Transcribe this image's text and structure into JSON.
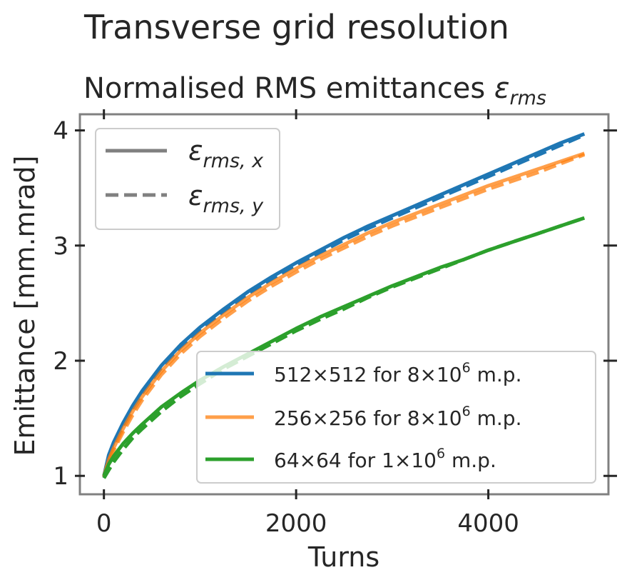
{
  "chart_data": {
    "type": "line",
    "suptitle": "Transverse grid resolution",
    "title": "Normalised RMS emittances ε_rms",
    "title_text": "Normalised RMS emittances ",
    "title_symbol": "ε",
    "title_sub": "rms",
    "xlabel": "Turns",
    "ylabel": "Emittance [mm.mrad]",
    "xlim": [
      -250,
      5250
    ],
    "ylim": [
      0.84,
      4.14
    ],
    "xticks": [
      0,
      2000,
      4000
    ],
    "yticks": [
      1,
      2,
      3,
      4
    ],
    "grid": false,
    "linestyle_legend": {
      "placement": "upper-left",
      "entries": [
        {
          "symbol": "ε",
          "sub": "rms, x",
          "style": "solid"
        },
        {
          "symbol": "ε",
          "sub": "rms, y",
          "style": "dashed"
        }
      ]
    },
    "series_legend": {
      "placement": "lower-right",
      "entries": [
        {
          "a": "512",
          "b": "512",
          "c": "8",
          "d": "10",
          "e": "6",
          "tail": " m.p."
        },
        {
          "a": "256",
          "b": "256",
          "c": "8",
          "d": "10",
          "e": "6",
          "tail": " m.p."
        },
        {
          "a": "64",
          "b": "64",
          "c": "1",
          "d": "10",
          "e": "6",
          "tail": " m.p."
        }
      ]
    },
    "x": [
      0,
      50,
      100,
      200,
      300,
      400,
      600,
      800,
      1000,
      1250,
      1500,
      1750,
      2000,
      2250,
      2500,
      2750,
      3000,
      3250,
      3500,
      3750,
      4000,
      4250,
      4500,
      4750,
      5000
    ],
    "series": [
      {
        "name": "512 × 512 for 8 × 10⁶ m.p.",
        "color": "#1f77b4",
        "x_values": [
          1.0,
          1.18,
          1.29,
          1.46,
          1.61,
          1.74,
          1.96,
          2.14,
          2.29,
          2.45,
          2.6,
          2.73,
          2.85,
          2.96,
          3.07,
          3.17,
          3.26,
          3.35,
          3.44,
          3.53,
          3.62,
          3.71,
          3.8,
          3.89,
          3.97
        ],
        "y_values": [
          0.99,
          1.16,
          1.27,
          1.44,
          1.59,
          1.72,
          1.94,
          2.12,
          2.27,
          2.43,
          2.58,
          2.71,
          2.83,
          2.94,
          3.05,
          3.15,
          3.24,
          3.33,
          3.42,
          3.51,
          3.6,
          3.69,
          3.78,
          3.87,
          3.96
        ]
      },
      {
        "name": "256 × 256 for 8 × 10⁶ m.p.",
        "color": "#ff7f0e",
        "x_values": [
          1.0,
          1.14,
          1.24,
          1.41,
          1.56,
          1.69,
          1.91,
          2.09,
          2.24,
          2.4,
          2.55,
          2.68,
          2.8,
          2.91,
          3.01,
          3.11,
          3.2,
          3.28,
          3.36,
          3.44,
          3.52,
          3.59,
          3.66,
          3.73,
          3.8
        ],
        "y_values": [
          0.99,
          1.12,
          1.22,
          1.38,
          1.53,
          1.66,
          1.88,
          2.06,
          2.21,
          2.37,
          2.52,
          2.65,
          2.77,
          2.88,
          2.98,
          3.08,
          3.17,
          3.25,
          3.33,
          3.41,
          3.49,
          3.56,
          3.63,
          3.71,
          3.79
        ]
      },
      {
        "name": "64 × 64 for 1 × 10⁶ m.p.",
        "color": "#2ca02c",
        "x_values": [
          1.0,
          1.1,
          1.17,
          1.28,
          1.37,
          1.45,
          1.6,
          1.72,
          1.83,
          1.95,
          2.06,
          2.17,
          2.28,
          2.38,
          2.47,
          2.56,
          2.65,
          2.73,
          2.81,
          2.88,
          2.96,
          3.03,
          3.1,
          3.17,
          3.24
        ],
        "y_values": [
          0.98,
          1.05,
          1.12,
          1.23,
          1.33,
          1.41,
          1.56,
          1.69,
          1.8,
          1.93,
          2.04,
          2.15,
          2.26,
          2.36,
          2.45,
          2.55,
          2.64,
          2.72,
          2.8,
          2.88,
          2.96,
          3.03,
          3.1,
          3.17,
          3.24
        ]
      }
    ],
    "colors": {
      "text": "#262626",
      "frame": "#808080",
      "legend_key": "#808080",
      "legend_border": "#cccccc"
    }
  }
}
